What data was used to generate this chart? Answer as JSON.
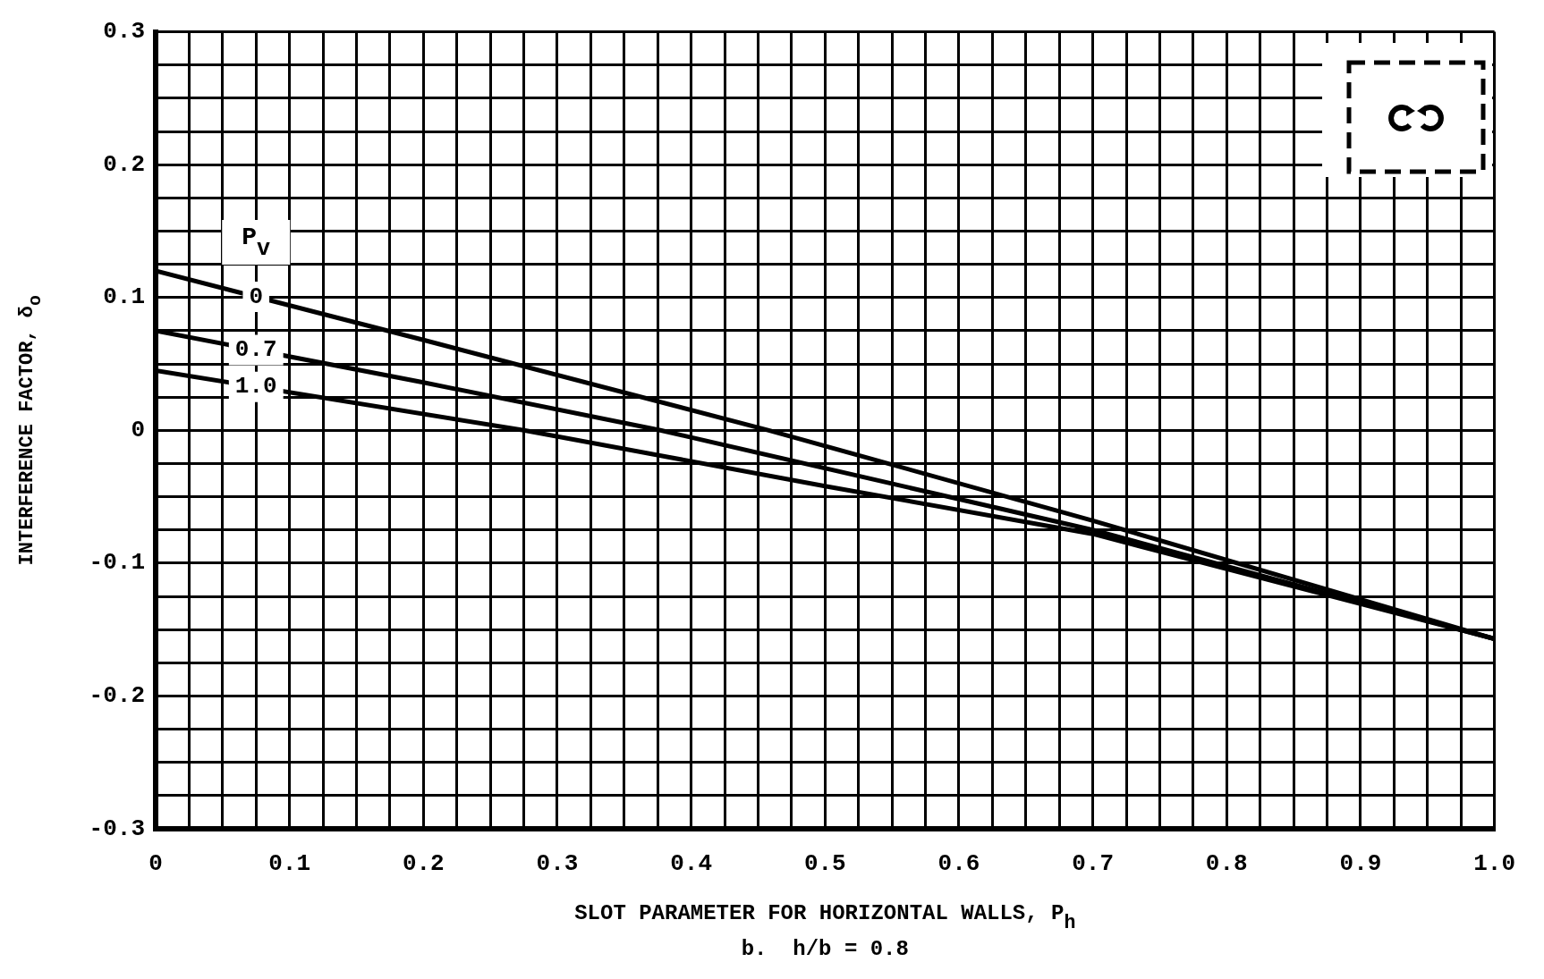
{
  "chart_data": {
    "type": "line",
    "xlabel": "SLOT PARAMETER FOR HORIZONTAL WALLS, P$_{h}$",
    "ylabel": "INTERFERENCE FACTOR, δ$_{o}$",
    "legend_title": "P$_{v}$",
    "annotations": [
      "b.  h/b = 0.8"
    ],
    "xlim": [
      0,
      1
    ],
    "ylim": [
      -0.3,
      0.3
    ],
    "xticks": [
      {
        "value": 0,
        "label": "0"
      },
      {
        "value": 0.025,
        "label": null
      },
      {
        "value": 0.05,
        "label": null
      },
      {
        "value": 0.075,
        "label": null
      },
      0.1,
      {
        "value": 0.125,
        "label": null
      },
      {
        "value": 0.15,
        "label": null
      },
      {
        "value": 0.175,
        "label": null
      },
      0.2,
      {
        "value": 0.225,
        "label": null
      },
      {
        "value": 0.25,
        "label": null
      },
      {
        "value": 0.275,
        "label": null
      },
      0.3,
      {
        "value": 0.325,
        "label": null
      },
      {
        "value": 0.35,
        "label": null
      },
      {
        "value": 0.375,
        "label": null
      },
      0.4,
      {
        "value": 0.425,
        "label": null
      },
      {
        "value": 0.45,
        "label": null
      },
      {
        "value": 0.475,
        "label": null
      },
      0.5,
      {
        "value": 0.525,
        "label": null
      },
      {
        "value": 0.55,
        "label": null
      },
      {
        "value": 0.575,
        "label": null
      },
      0.6,
      {
        "value": 0.625,
        "label": null
      },
      {
        "value": 0.65,
        "label": null
      },
      {
        "value": 0.675,
        "label": null
      },
      0.7,
      {
        "value": 0.725,
        "label": null
      },
      {
        "value": 0.75,
        "label": null
      },
      {
        "value": 0.775,
        "label": null
      },
      0.8,
      {
        "value": 0.825,
        "label": null
      },
      {
        "value": 0.85,
        "label": null
      },
      {
        "value": 0.875,
        "label": null
      },
      0.9,
      {
        "value": 0.925,
        "label": null
      },
      {
        "value": 0.95,
        "label": null
      },
      {
        "value": 0.975,
        "label": null
      },
      {
        "value": 1,
        "label": "1.0"
      }
    ],
    "yticks": [
      -0.3,
      {
        "value": -0.275,
        "label": null
      },
      {
        "value": -0.25,
        "label": null
      },
      {
        "value": -0.225,
        "label": null
      },
      -0.2,
      {
        "value": -0.175,
        "label": null
      },
      {
        "value": -0.15,
        "label": null
      },
      {
        "value": -0.125,
        "label": null
      },
      -0.1,
      {
        "value": -0.075,
        "label": null
      },
      {
        "value": -0.05,
        "label": null
      },
      {
        "value": -0.025,
        "label": null
      },
      0,
      {
        "value": 0.025,
        "label": null
      },
      {
        "value": 0.05,
        "label": null
      },
      {
        "value": 0.075,
        "label": null
      },
      0.1,
      {
        "value": 0.125,
        "label": null
      },
      {
        "value": 0.15,
        "label": null
      },
      {
        "value": 0.175,
        "label": null
      },
      0.2,
      {
        "value": 0.225,
        "label": null
      },
      {
        "value": 0.25,
        "label": null
      },
      {
        "value": 0.275,
        "label": null
      },
      0.3
    ],
    "grid": true,
    "marker": "none",
    "line_style": "solid",
    "series": [
      {
        "name": "0",
        "color": "#000000",
        "x": [
          0,
          0.2,
          0.458,
          0.7,
          1.0
        ],
        "values": [
          0.12,
          0.068,
          0,
          -0.068,
          -0.157
        ]
      },
      {
        "name": "0.7",
        "color": "#000000",
        "x": [
          0,
          0.2,
          0.377,
          0.7,
          1.0
        ],
        "values": [
          0.075,
          0.036,
          0,
          -0.075,
          -0.157
        ]
      },
      {
        "name": "1.0",
        "color": "#000000",
        "x": [
          0,
          0.275,
          0.5,
          0.7,
          1.0
        ],
        "values": [
          0.045,
          0,
          -0.042,
          -0.078,
          -0.157
        ]
      }
    ]
  }
}
